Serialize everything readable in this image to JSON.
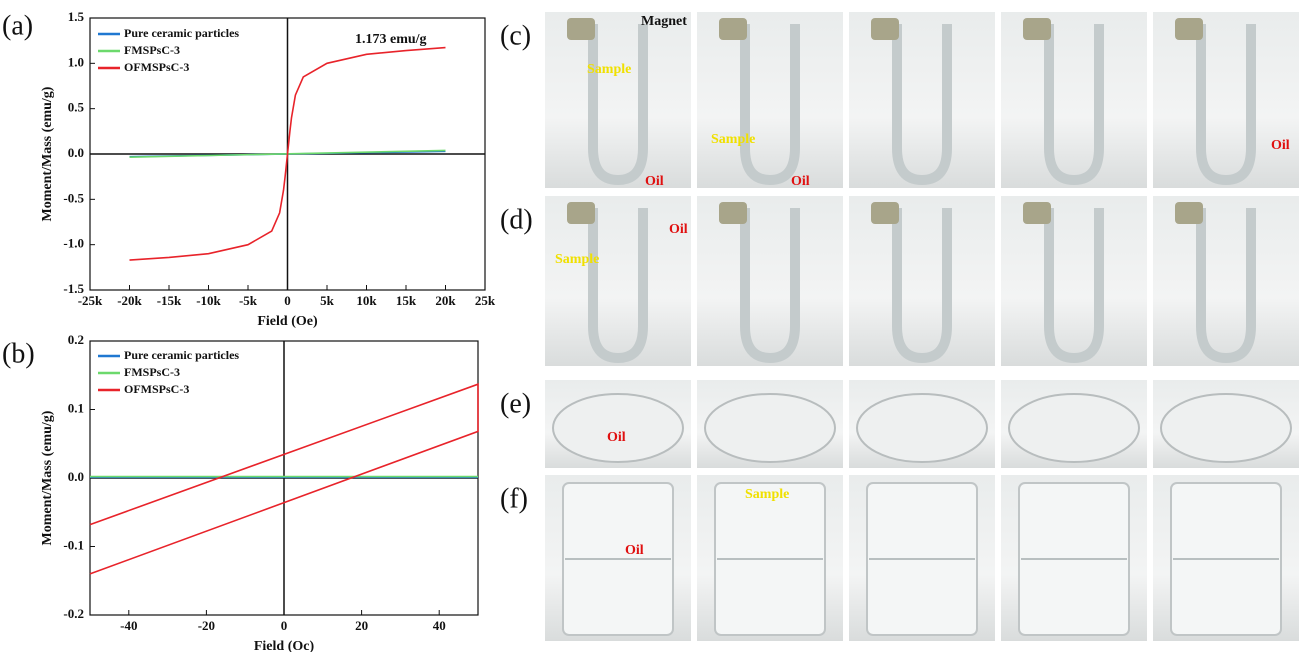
{
  "chart_data": [
    {
      "type": "line",
      "panel_label": "(a)",
      "x_label": "Field (Oe)",
      "y_label": "Moment/Mass (emu/g)",
      "annotation": "1.173 emu/g",
      "xlim": [
        -25000,
        25000
      ],
      "xticks": [
        {
          "value": -25000,
          "label": "-25k"
        },
        {
          "value": -20000,
          "label": "-20k"
        },
        {
          "value": -15000,
          "label": "-15k"
        },
        {
          "value": -10000,
          "label": "-10k"
        },
        {
          "value": -5000,
          "label": "-5k"
        },
        0,
        {
          "value": 5000,
          "label": "5k"
        },
        {
          "value": 10000,
          "label": "10k"
        },
        {
          "value": 15000,
          "label": "15k"
        },
        {
          "value": 20000,
          "label": "20k"
        },
        {
          "value": 25000,
          "label": "25k"
        }
      ],
      "ylim": [
        -1.5,
        1.5
      ],
      "yticks": [
        -1.5,
        {
          "value": -1.0,
          "label": "-1.0"
        },
        -0.5,
        {
          "value": 0,
          "label": "0.0"
        },
        0.5,
        {
          "value": 1.0,
          "label": "1.0"
        },
        1.5
      ],
      "series": [
        {
          "name": "Pure ceramic particles",
          "color": "#1f78d1",
          "x": [
            -20000,
            20000
          ],
          "values": [
            -0.03,
            0.03
          ]
        },
        {
          "name": "FMSPsC-3",
          "color": "#6cd96c",
          "x": [
            -20000,
            20000
          ],
          "values": [
            -0.035,
            0.04
          ]
        },
        {
          "name": "OFMSPsC-3",
          "color": "#e8232a",
          "x": [
            -20000,
            -15000,
            -10000,
            -5000,
            -2000,
            -1000,
            -500,
            -300,
            0,
            300,
            500,
            1000,
            2000,
            5000,
            10000,
            15000,
            20000
          ],
          "values": [
            -1.17,
            -1.14,
            -1.1,
            -1.0,
            -0.85,
            -0.65,
            -0.4,
            -0.25,
            0,
            0.25,
            0.4,
            0.65,
            0.85,
            1.0,
            1.1,
            1.14,
            1.173
          ]
        }
      ]
    },
    {
      "type": "line",
      "panel_label": "(b)",
      "x_label": "Field (Oc)",
      "y_label": "Moment/Mass (emu/g)",
      "xlim": [
        -50,
        50
      ],
      "xticks": [
        -40,
        -20,
        0,
        20,
        40
      ],
      "ylim": [
        -0.2,
        0.2
      ],
      "yticks": [
        -0.2,
        -0.1,
        {
          "value": 0,
          "label": "0.0"
        },
        0.1,
        0.2
      ],
      "series": [
        {
          "name": "Pure ceramic particles",
          "color": "#1f78d1",
          "x": [
            -50,
            50
          ],
          "values": [
            0.001,
            0.001
          ]
        },
        {
          "name": "FMSPsC-3",
          "color": "#6cd96c",
          "x": [
            -50,
            50
          ],
          "values": [
            0.002,
            0.002
          ]
        },
        {
          "name": "OFMSPsC-3",
          "color": "#e8232a",
          "x": [
            -50,
            50,
            50,
            -50
          ],
          "values": [
            -0.068,
            0.137,
            0.068,
            -0.14
          ]
        }
      ]
    }
  ],
  "photos": {
    "rows": [
      {
        "label": "(c)",
        "notes": [
          [
            "Magnet",
            "Sample",
            "Oil"
          ],
          [
            "Sample",
            "Oil"
          ],
          [],
          [],
          [
            "Oil"
          ]
        ]
      },
      {
        "label": "(d)",
        "notes": [
          [
            "Sample",
            "Oil"
          ],
          [],
          [],
          [],
          []
        ]
      },
      {
        "label": "(e)",
        "notes": [
          [
            "Oil"
          ],
          [],
          [],
          [],
          []
        ]
      },
      {
        "label": "(f)",
        "notes": [
          [
            "Oil"
          ],
          [
            "Sample"
          ],
          [],
          [],
          []
        ]
      }
    ]
  }
}
